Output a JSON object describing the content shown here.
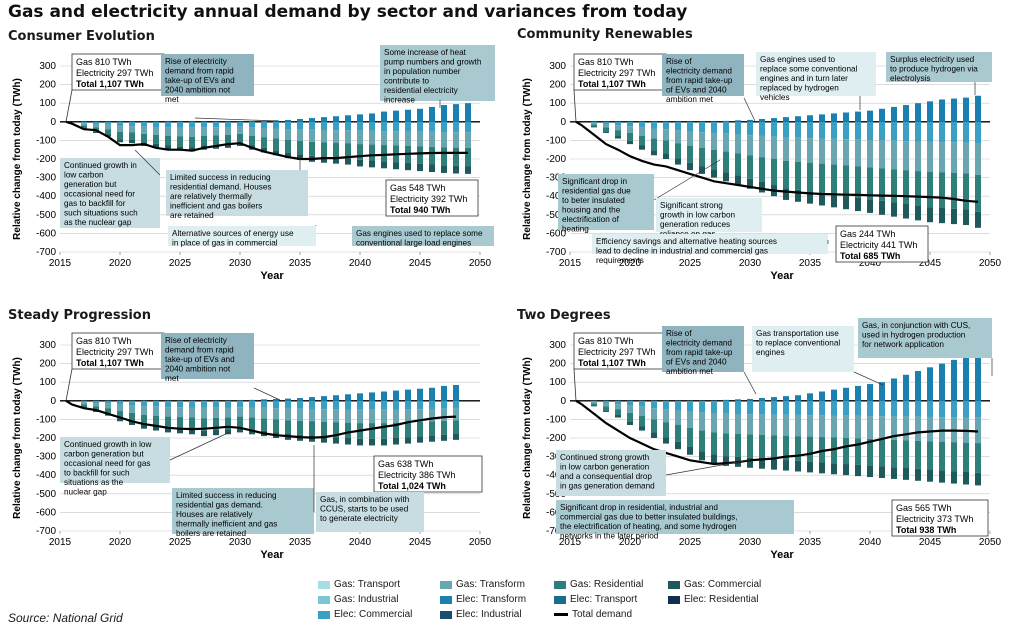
{
  "title": "Gas and electricity annual demand by sector and variances from today",
  "source": "Source: National Grid",
  "legend": [
    {
      "label": "Gas: Transport",
      "color": "#a8dde8"
    },
    {
      "label": "Gas: Industrial",
      "color": "#7cc6d4"
    },
    {
      "label": "Elec: Commercial",
      "color": "#3aa0c3"
    },
    {
      "label": "Gas: Transform",
      "color": "#6aa6b2"
    },
    {
      "label": "Elec: Transform",
      "color": "#1b7fb0"
    },
    {
      "label": "Elec: Industrial",
      "color": "#1d4d6e"
    },
    {
      "label": "Gas: Residential",
      "color": "#2e7e7a"
    },
    {
      "label": "Elec: Transport",
      "color": "#176e8a"
    },
    {
      "label": "Total demand",
      "color": "#000000"
    },
    {
      "label": "Gas: Commercial",
      "color": "#1e5a5c"
    },
    {
      "label": "Elec: Residential",
      "color": "#0e2f52"
    }
  ],
  "chart_data": [
    {
      "type": "bar",
      "title": "Consumer Evolution",
      "xlabel": "Year",
      "ylabel": "Relative change from today (TWh)",
      "xlim": [
        2015,
        2050
      ],
      "ylim": [
        -700,
        300
      ],
      "yticks": [
        300,
        200,
        100,
        0,
        -100,
        -200,
        -300,
        -400,
        -500,
        -600,
        -700
      ],
      "xticks": [
        2015,
        2020,
        2025,
        2030,
        2035,
        2040,
        2045,
        2050
      ],
      "years": [
        2017,
        2018,
        2019,
        2020,
        2021,
        2022,
        2023,
        2024,
        2025,
        2026,
        2027,
        2028,
        2029,
        2030,
        2031,
        2032,
        2033,
        2034,
        2035,
        2036,
        2037,
        2038,
        2039,
        2040,
        2041,
        2042,
        2043,
        2044,
        2045,
        2046,
        2047,
        2048,
        2049
      ],
      "bar_positive": [
        0,
        0,
        0,
        0,
        0,
        0,
        0,
        0,
        0,
        0,
        0,
        0,
        0,
        0,
        2,
        5,
        8,
        10,
        15,
        20,
        25,
        30,
        35,
        40,
        45,
        55,
        60,
        65,
        70,
        80,
        90,
        95,
        100
      ],
      "bar_negative": [
        -40,
        -60,
        -80,
        -110,
        -115,
        -130,
        -140,
        -150,
        -155,
        -160,
        -150,
        -145,
        -140,
        -130,
        -150,
        -165,
        -180,
        -195,
        -205,
        -215,
        -220,
        -225,
        -230,
        -240,
        -245,
        -250,
        -255,
        -260,
        -265,
        -270,
        -275,
        -278,
        -280
      ],
      "total_demand": {
        "x": [
          2015.5,
          2016,
          2017,
          2018,
          2019,
          2020,
          2021,
          2022,
          2023,
          2024,
          2025,
          2026,
          2027,
          2028,
          2029,
          2030,
          2031,
          2032,
          2033,
          2034,
          2035,
          2036,
          2037,
          2038,
          2039,
          2040,
          2041,
          2042,
          2043,
          2044,
          2045,
          2046,
          2047,
          2048,
          2049
        ],
        "y": [
          0,
          -10,
          -40,
          -45,
          -80,
          -125,
          -125,
          -120,
          -140,
          -150,
          -150,
          -155,
          -140,
          -130,
          -120,
          -115,
          -140,
          -160,
          -175,
          -190,
          -200,
          -200,
          -195,
          -195,
          -190,
          -185,
          -180,
          -178,
          -175,
          -172,
          -170,
          -168,
          -167,
          -167,
          -167
        ]
      },
      "start_label": [
        "Gas 810 TWh",
        "Electricity 297 TWh",
        "Total 1,107 TWh"
      ],
      "end_label": [
        "Gas 548 TWh",
        "Electricity 392 TWh",
        "Total 940 TWh"
      ],
      "annotations": [
        "Rise of electricity demand from rapid take-up of EVs and 2040 ambition not met",
        "Some increase of heat pump numbers and growth in population number contribute to residential electricity increase",
        "Continued growth in low carbon generation but occasional need for gas to backfill for such situations such as the nuclear gap",
        "Limited success in reducing residential demand. Houses are relatively thermally inefficient and gas boilers are retained",
        "Alternative sources of energy use in place of gas in commercial",
        "Gas engines used to replace some conventional large load engines"
      ]
    },
    {
      "type": "bar",
      "title": "Community Renewables",
      "xlabel": "Year",
      "ylabel": "Relative change from today (TWh)",
      "xlim": [
        2015,
        2050
      ],
      "ylim": [
        -700,
        300
      ],
      "yticks": [
        300,
        200,
        100,
        0,
        -100,
        -200,
        -300,
        -400,
        -500,
        -600,
        -700
      ],
      "xticks": [
        2015,
        2020,
        2025,
        2030,
        2035,
        2040,
        2045,
        2050
      ],
      "years": [
        2017,
        2018,
        2019,
        2020,
        2021,
        2022,
        2023,
        2024,
        2025,
        2026,
        2027,
        2028,
        2029,
        2030,
        2031,
        2032,
        2033,
        2034,
        2035,
        2036,
        2037,
        2038,
        2039,
        2040,
        2041,
        2042,
        2043,
        2044,
        2045,
        2046,
        2047,
        2048,
        2049
      ],
      "bar_positive": [
        0,
        0,
        0,
        0,
        0,
        0,
        0,
        0,
        0,
        0,
        0,
        5,
        8,
        10,
        15,
        20,
        25,
        30,
        35,
        40,
        45,
        50,
        55,
        60,
        70,
        80,
        90,
        100,
        110,
        120,
        125,
        130,
        140
      ],
      "bar_negative": [
        -30,
        -60,
        -90,
        -120,
        -150,
        -180,
        -200,
        -230,
        -260,
        -280,
        -300,
        -320,
        -340,
        -360,
        -380,
        -400,
        -420,
        -430,
        -440,
        -450,
        -460,
        -470,
        -480,
        -490,
        -500,
        -510,
        -520,
        -530,
        -540,
        -545,
        -550,
        -555,
        -570
      ],
      "total_demand": {
        "x": [
          2015.5,
          2016,
          2017,
          2018,
          2019,
          2020,
          2021,
          2022,
          2023,
          2024,
          2025,
          2026,
          2027,
          2028,
          2029,
          2030,
          2031,
          2032,
          2033,
          2034,
          2035,
          2036,
          2037,
          2038,
          2039,
          2040,
          2041,
          2042,
          2043,
          2044,
          2045,
          2046,
          2047,
          2048,
          2049
        ],
        "y": [
          0,
          -20,
          -70,
          -120,
          -150,
          -185,
          -210,
          -230,
          -240,
          -260,
          -280,
          -300,
          -320,
          -330,
          -340,
          -350,
          -360,
          -370,
          -375,
          -380,
          -385,
          -388,
          -390,
          -392,
          -393,
          -395,
          -397,
          -398,
          -400,
          -402,
          -405,
          -408,
          -415,
          -425,
          -430
        ]
      },
      "start_label": [
        "Gas 810 TWh",
        "Electricity 297 TWh",
        "Total 1,107 TWh"
      ],
      "end_label": [
        "Gas 244 TWh",
        "Electricity 441 TWh",
        "Total 685 TWh"
      ],
      "annotations": [
        "Rise of electricity demand from rapid take-up of EVs and 2040 ambition met",
        "Gas engines used to replace some conventional engines and in turn later replaced by hydrogen vehicles",
        "Surplus electricity used to produce hydrogen via electrolysis",
        "Significant drop in residential gas due to beter insulated housing and the electrification of heating",
        "Significant strong growth in low carbon generation reduces reliance on gas",
        "Efficiency savings and alternative heating sources lead to decline in industrial and commercial gas requirements"
      ]
    },
    {
      "type": "bar",
      "title": "Steady Progression",
      "xlabel": "Year",
      "ylabel": "Relative change from today (TWh)",
      "xlim": [
        2015,
        2050
      ],
      "ylim": [
        -700,
        300
      ],
      "yticks": [
        300,
        200,
        100,
        0,
        -100,
        -200,
        -300,
        -400,
        -500,
        -600,
        -700
      ],
      "xticks": [
        2015,
        2020,
        2025,
        2030,
        2035,
        2040,
        2045,
        2050
      ],
      "years": [
        2017,
        2018,
        2019,
        2020,
        2021,
        2022,
        2023,
        2024,
        2025,
        2026,
        2027,
        2028,
        2029,
        2030,
        2031,
        2032,
        2033,
        2034,
        2035,
        2036,
        2037,
        2038,
        2039,
        2040,
        2041,
        2042,
        2043,
        2044,
        2045,
        2046,
        2047,
        2048
      ],
      "bar_positive": [
        0,
        0,
        0,
        0,
        0,
        0,
        0,
        0,
        0,
        0,
        0,
        0,
        0,
        2,
        5,
        8,
        10,
        12,
        15,
        20,
        25,
        30,
        35,
        40,
        45,
        50,
        55,
        60,
        65,
        70,
        80,
        85
      ],
      "bar_negative": [
        -40,
        -60,
        -80,
        -110,
        -130,
        -150,
        -160,
        -170,
        -175,
        -180,
        -190,
        -185,
        -180,
        -170,
        -180,
        -190,
        -200,
        -210,
        -215,
        -220,
        -225,
        -230,
        -235,
        -240,
        -240,
        -240,
        -235,
        -230,
        -225,
        -220,
        -215,
        -210
      ],
      "total_demand": {
        "x": [
          2015.5,
          2016,
          2017,
          2018,
          2019,
          2020,
          2021,
          2022,
          2023,
          2024,
          2025,
          2026,
          2027,
          2028,
          2029,
          2030,
          2031,
          2032,
          2033,
          2034,
          2035,
          2036,
          2037,
          2038,
          2039,
          2040,
          2041,
          2042,
          2043,
          2044,
          2045,
          2046,
          2047,
          2048
        ],
        "y": [
          0,
          -20,
          -40,
          -50,
          -70,
          -90,
          -110,
          -125,
          -135,
          -145,
          -150,
          -152,
          -150,
          -145,
          -140,
          -145,
          -160,
          -175,
          -185,
          -190,
          -195,
          -198,
          -195,
          -185,
          -170,
          -160,
          -150,
          -140,
          -130,
          -115,
          -105,
          -95,
          -88,
          -85
        ]
      },
      "start_label": [
        "Gas 810 TWh",
        "Electricity 297 TWh",
        "Total 1,107 TWh"
      ],
      "end_label": [
        "Gas 638 TWh",
        "Electricity 386 TWh",
        "Total 1,024 TWh"
      ],
      "annotations": [
        "Rise of electricity demand from rapid take-up of EVs and 2040 ambition not met",
        "Continued growth in low carbon generation but occasional need for gas to backfill for such situations as the nuclear gap",
        "Limited success in reducing residential gas demand. Houses are relatively thermally inefficient and gas boilers are retained",
        "Gas, in combination with CCUS, starts to be used to generate electricity"
      ]
    },
    {
      "type": "bar",
      "title": "Two Degrees",
      "xlabel": "Year",
      "ylabel": "Relative change from today (TWh)",
      "xlim": [
        2015,
        2050
      ],
      "ylim": [
        -700,
        300
      ],
      "yticks": [
        300,
        200,
        100,
        0,
        -100,
        -200,
        -300,
        -400,
        -500,
        -600,
        -700
      ],
      "xticks": [
        2015,
        2020,
        2025,
        2030,
        2035,
        2040,
        2045,
        2050
      ],
      "years": [
        2017,
        2018,
        2019,
        2020,
        2021,
        2022,
        2023,
        2024,
        2025,
        2026,
        2027,
        2028,
        2029,
        2030,
        2031,
        2032,
        2033,
        2034,
        2035,
        2036,
        2037,
        2038,
        2039,
        2040,
        2041,
        2042,
        2043,
        2044,
        2045,
        2046,
        2047,
        2048,
        2049
      ],
      "bar_positive": [
        0,
        0,
        0,
        0,
        0,
        0,
        0,
        0,
        0,
        0,
        0,
        5,
        8,
        10,
        15,
        20,
        25,
        30,
        40,
        50,
        60,
        70,
        80,
        90,
        100,
        120,
        140,
        160,
        180,
        200,
        220,
        240,
        250
      ],
      "bar_negative": [
        -30,
        -60,
        -90,
        -130,
        -160,
        -200,
        -230,
        -260,
        -290,
        -320,
        -340,
        -350,
        -355,
        -360,
        -365,
        -370,
        -375,
        -380,
        -385,
        -390,
        -395,
        -400,
        -405,
        -410,
        -415,
        -420,
        -425,
        -430,
        -435,
        -440,
        -445,
        -450,
        -455
      ],
      "total_demand": {
        "x": [
          2015.5,
          2016,
          2017,
          2018,
          2019,
          2020,
          2021,
          2022,
          2023,
          2024,
          2025,
          2026,
          2027,
          2028,
          2029,
          2030,
          2031,
          2032,
          2033,
          2034,
          2035,
          2036,
          2037,
          2038,
          2039,
          2040,
          2041,
          2042,
          2043,
          2044,
          2045,
          2046,
          2047,
          2048,
          2049
        ],
        "y": [
          0,
          -20,
          -70,
          -120,
          -160,
          -200,
          -230,
          -260,
          -280,
          -300,
          -320,
          -330,
          -340,
          -335,
          -330,
          -320,
          -315,
          -310,
          -300,
          -295,
          -285,
          -270,
          -260,
          -245,
          -235,
          -220,
          -205,
          -190,
          -180,
          -170,
          -165,
          -160,
          -160,
          -162,
          -165
        ]
      },
      "start_label": [
        "Gas 810 TWh",
        "Electricity 297 TWh",
        "Total 1,107 TWh"
      ],
      "end_label": [
        "Gas 565 TWh",
        "Electricity 373 TWh",
        "Total 938 TWh"
      ],
      "annotations": [
        "Rise of electricity demand from rapid take-up of EVs and 2040 ambition met",
        "Gas transportation use to replace conventional engines",
        "Gas, in conjunction with CUS, used in hydrogen production for network application",
        "Continued strong growth in low carbon generation and a consequential drop in gas generation demand",
        "Significant drop in residential, industrial and commercial gas due to better insulated buildings, the electrification of heating, and some hydrogen networks in the later period"
      ]
    }
  ]
}
